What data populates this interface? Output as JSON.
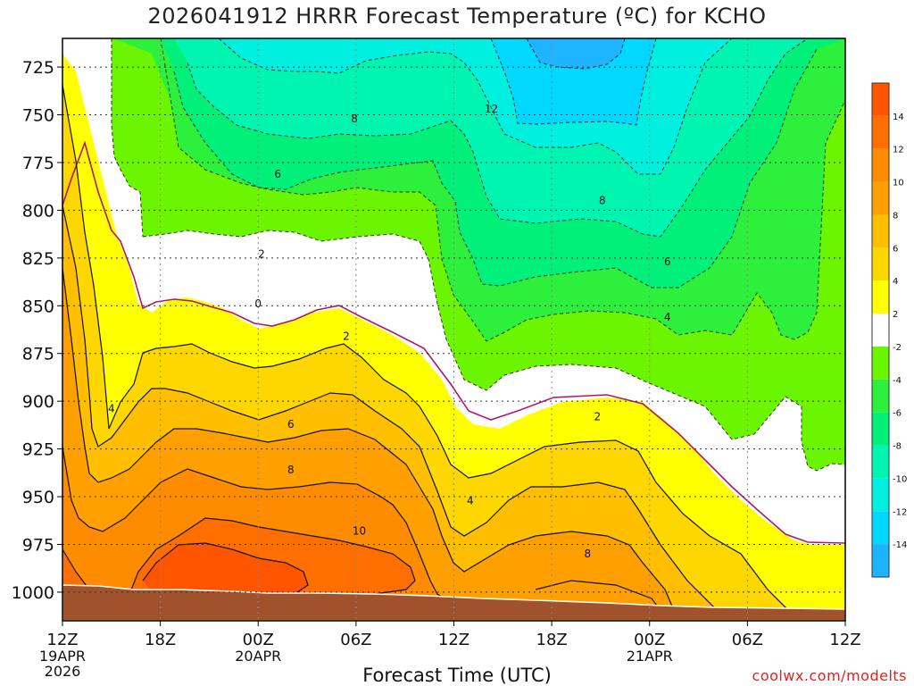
{
  "title": "2026041912 HRRR Forecast Temperature (ºC) for KCHO",
  "xlabel": "Forecast Time (UTC)",
  "credit": "coolwx.com/modelts",
  "chart_data": {
    "type": "contour",
    "y_axis": {
      "units": "hPa",
      "ticks": [
        725,
        750,
        775,
        800,
        825,
        850,
        875,
        900,
        925,
        950,
        975,
        1000
      ],
      "range": [
        1015,
        710
      ],
      "grid": true
    },
    "x_axis": {
      "start": "2026-04-19 12Z",
      "end": "2026-04-21 12Z",
      "ticks": [
        {
          "hour": 0,
          "label": "12Z",
          "sub": [
            "19APR",
            "2026"
          ]
        },
        {
          "hour": 6,
          "label": "18Z",
          "sub": []
        },
        {
          "hour": 12,
          "label": "00Z",
          "sub": [
            "20APR"
          ]
        },
        {
          "hour": 18,
          "label": "06Z",
          "sub": []
        },
        {
          "hour": 24,
          "label": "12Z",
          "sub": []
        },
        {
          "hour": 30,
          "label": "18Z",
          "sub": []
        },
        {
          "hour": 36,
          "label": "00Z",
          "sub": [
            "21APR"
          ]
        },
        {
          "hour": 42,
          "label": "06Z",
          "sub": []
        },
        {
          "hour": 48,
          "label": "12Z",
          "sub": []
        }
      ],
      "grid": true
    },
    "colorbar": [
      {
        "range": [
          -16,
          -14
        ],
        "color": "#1fb4ff"
      },
      {
        "range": [
          -14,
          -12
        ],
        "color": "#00d8ff"
      },
      {
        "range": [
          -12,
          -10
        ],
        "color": "#00f0e0"
      },
      {
        "range": [
          -10,
          -8
        ],
        "color": "#00f5b0"
      },
      {
        "range": [
          -8,
          -6
        ],
        "color": "#00f07a"
      },
      {
        "range": [
          -6,
          -4
        ],
        "color": "#2df03c"
      },
      {
        "range": [
          -4,
          -2
        ],
        "color": "#6bf500"
      },
      {
        "range": [
          -2,
          2
        ],
        "color": "#ffffff"
      },
      {
        "range": [
          2,
          4
        ],
        "color": "#ffff00"
      },
      {
        "range": [
          4,
          6
        ],
        "color": "#ffd700"
      },
      {
        "range": [
          6,
          8
        ],
        "color": "#ffbe00"
      },
      {
        "range": [
          8,
          10
        ],
        "color": "#ffa000"
      },
      {
        "range": [
          10,
          12
        ],
        "color": "#ff8c00"
      },
      {
        "range": [
          12,
          14
        ],
        "color": "#ff6e00"
      },
      {
        "range": [
          14,
          16
        ],
        "color": "#ff5500"
      }
    ],
    "colorbar_labels": [
      14,
      12,
      10,
      8,
      6,
      4,
      2,
      -2,
      -4,
      -6,
      -8,
      -10,
      -12,
      -14
    ],
    "ground_color": "#a0522d",
    "contour_labels": [
      {
        "text": "12",
        "hour": 26.3,
        "p": 747
      },
      {
        "text": "8",
        "hour": 17.9,
        "p": 752
      },
      {
        "text": "8",
        "hour": 33.1,
        "p": 795
      },
      {
        "text": "6",
        "hour": 13.2,
        "p": 781
      },
      {
        "text": "6",
        "hour": 37.1,
        "p": 827
      },
      {
        "text": "4",
        "hour": 37.1,
        "p": 856
      },
      {
        "text": "2",
        "hour": 12.2,
        "p": 823
      },
      {
        "text": "0",
        "hour": 12.0,
        "p": 849
      },
      {
        "text": "2",
        "hour": 17.4,
        "p": 866
      },
      {
        "text": "4",
        "hour": 3.0,
        "p": 904
      },
      {
        "text": "6",
        "hour": 14.0,
        "p": 912
      },
      {
        "text": "8",
        "hour": 14.0,
        "p": 936
      },
      {
        "text": "10",
        "hour": 18.2,
        "p": 968
      },
      {
        "text": "4",
        "hour": 25.0,
        "p": 952
      },
      {
        "text": "2",
        "hour": 32.8,
        "p": 908
      },
      {
        "text": "8",
        "hour": 32.2,
        "p": 980
      }
    ]
  }
}
